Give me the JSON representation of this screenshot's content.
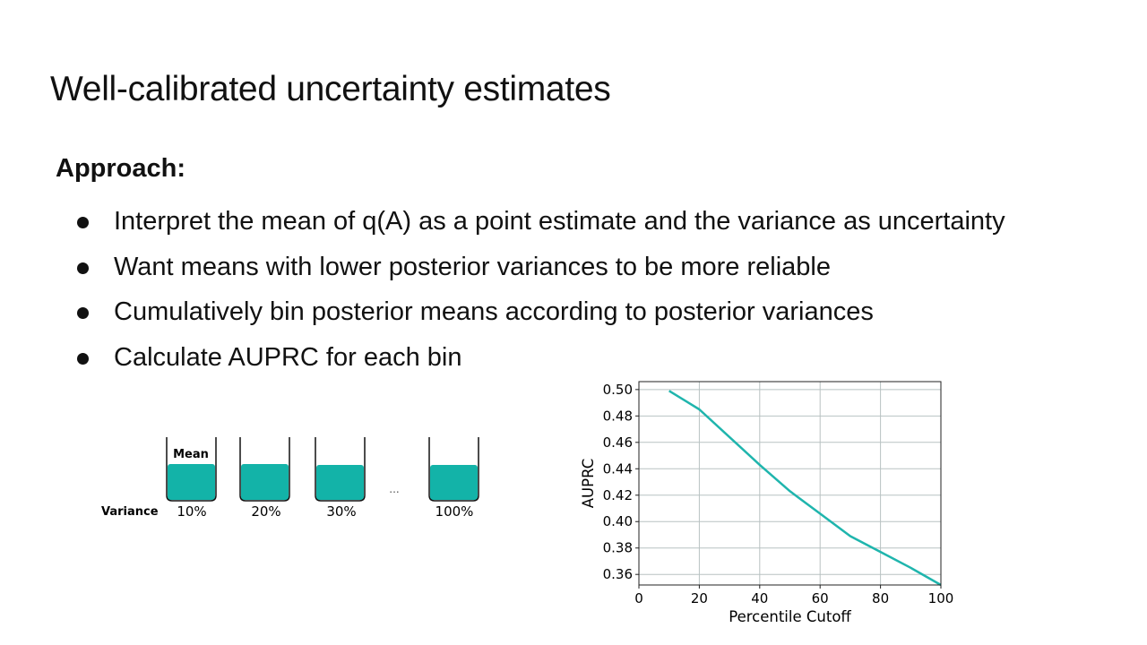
{
  "slide": {
    "title": "Well-calibrated uncertainty estimates",
    "approach_label": "Approach:",
    "bullets": [
      "Interpret the mean of q(A) as a point estimate and the variance as uncertainty",
      "Want means with lower posterior variances to be more reliable",
      "Cumulatively bin posterior means according to posterior variances",
      "Calculate AUPRC for each bin"
    ]
  },
  "bins_diagram": {
    "mean_label": "Mean",
    "variance_label": "Variance",
    "ellipsis": "...",
    "bin_labels": [
      "10%",
      "20%",
      "30%",
      "100%"
    ],
    "fill_color": "#13b3a8"
  },
  "chart_data": {
    "type": "line",
    "xlabel": "Percentile Cutoff",
    "ylabel": "AUPRC",
    "xlim": [
      0,
      100
    ],
    "ylim": [
      0.352,
      0.506
    ],
    "x_ticks": [
      0,
      20,
      40,
      60,
      80,
      100
    ],
    "y_ticks": [
      0.36,
      0.38,
      0.4,
      0.42,
      0.44,
      0.46,
      0.48,
      0.5
    ],
    "x_tick_labels": [
      "0",
      "20",
      "40",
      "60",
      "80",
      "100"
    ],
    "y_tick_labels": [
      "0.36",
      "0.38",
      "0.40",
      "0.42",
      "0.44",
      "0.46",
      "0.48",
      "0.50"
    ],
    "grid": true,
    "series": [
      {
        "color": "#1fb5ad",
        "x": [
          10,
          20,
          30,
          40,
          50,
          60,
          70,
          80,
          90,
          100
        ],
        "y": [
          0.499,
          0.485,
          0.464,
          0.443,
          0.423,
          0.406,
          0.389,
          0.377,
          0.365,
          0.352
        ]
      }
    ]
  }
}
